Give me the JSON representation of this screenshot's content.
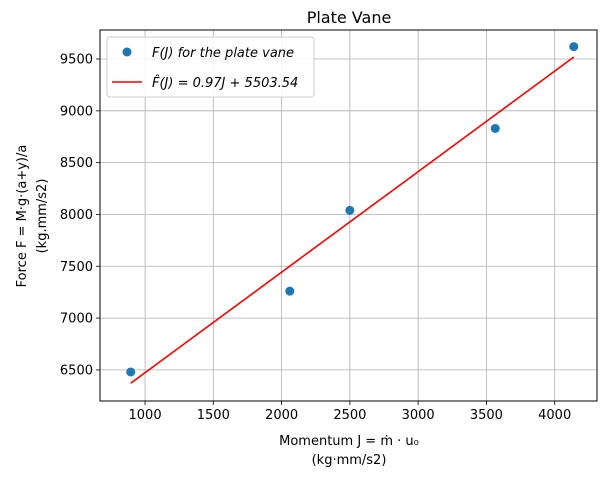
{
  "chart_data": {
    "type": "scatter",
    "title": "Plate Vane",
    "xlabel_line1": "Momentum J = ṁ · u₀",
    "xlabel_line2": "(kg·mm/s2)",
    "ylabel_line1": "Force F = M·g·(a+y)/a",
    "ylabel_line2": "(kg.mm/s2)",
    "xlim": [
      670,
      4310
    ],
    "ylim": [
      6200,
      9780
    ],
    "xticks": [
      1000,
      1500,
      2000,
      2500,
      3000,
      3500,
      4000
    ],
    "yticks": [
      6500,
      7000,
      7500,
      8000,
      8500,
      9000,
      9500
    ],
    "grid": true,
    "legend_position": "top-left",
    "series": [
      {
        "name": "F(J) for the plate vane",
        "kind": "scatter",
        "color": "#1f77b4",
        "x": [
          895,
          2060,
          2500,
          3565,
          4140
        ],
        "y": [
          6480,
          7260,
          8040,
          8830,
          9620
        ]
      },
      {
        "name": "F̂(J) = 0.97J + 5503.54",
        "kind": "line",
        "color": "#ff0000",
        "x": [
          895,
          4140
        ],
        "y": [
          6371.69,
          9519.34
        ]
      }
    ]
  }
}
